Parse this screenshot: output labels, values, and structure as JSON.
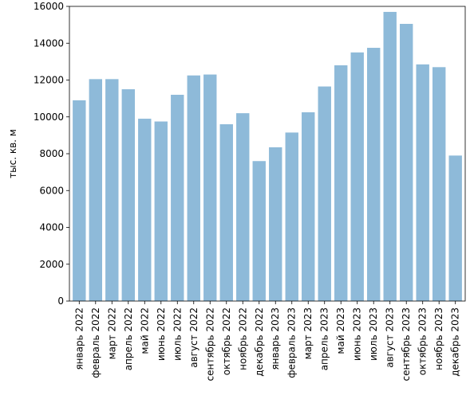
{
  "chart_data": {
    "type": "bar",
    "ylabel": "тыс. кв. м",
    "ylim": [
      0,
      16000
    ],
    "yticks": [
      0,
      2000,
      4000,
      6000,
      8000,
      10000,
      12000,
      14000,
      16000
    ],
    "grid": false,
    "bar_color": "#8ebad9",
    "categories": [
      "январь 2022",
      "февраль 2022",
      "март 2022",
      "апрель 2022",
      "май 2022",
      "июнь 2022",
      "июль 2022",
      "август 2022",
      "сентябрь 2022",
      "октябрь 2022",
      "ноябрь 2022",
      "декабрь 2022",
      "январь 2023",
      "февраль 2023",
      "март 2023",
      "апрель 2023",
      "май 2023",
      "июнь 2023",
      "июль 2023",
      "август 2023",
      "сентябрь 2023",
      "октябрь 2023",
      "ноябрь 2023",
      "декабрь 2023"
    ],
    "values": [
      10900,
      12050,
      12050,
      11500,
      9900,
      9750,
      11200,
      12250,
      12300,
      9600,
      10200,
      7600,
      8350,
      9150,
      10250,
      11650,
      12800,
      13500,
      13750,
      15700,
      15050,
      12850,
      12700,
      7900
    ]
  }
}
